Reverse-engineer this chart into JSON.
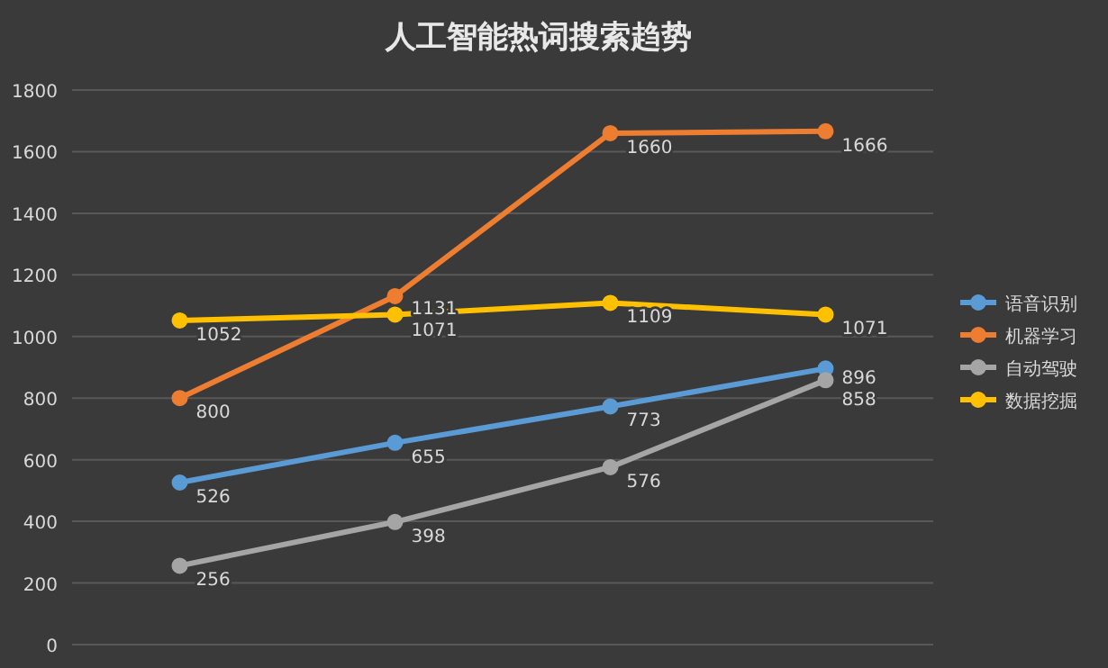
{
  "chart_data": {
    "type": "line",
    "title": "人工智能热词搜索趋势",
    "categories": [
      null,
      null,
      null,
      null
    ],
    "series": [
      {
        "name": "语音识别",
        "color": "#5b9bd5",
        "values": [
          526,
          655,
          773,
          896
        ]
      },
      {
        "name": "机器学习",
        "color": "#ed7d31",
        "values": [
          800,
          1131,
          1660,
          1666
        ]
      },
      {
        "name": "自动驾驶",
        "color": "#a5a5a5",
        "values": [
          256,
          398,
          576,
          858
        ]
      },
      {
        "name": "数据挖掘",
        "color": "#ffc000",
        "values": [
          1052,
          1071,
          1109,
          1071
        ]
      }
    ],
    "ylim": [
      0,
      1800
    ],
    "yticks": [
      0,
      200,
      400,
      600,
      800,
      1000,
      1200,
      1400,
      1600,
      1800
    ],
    "grid": "y",
    "legend": "right",
    "marker": "circle",
    "data_labels": true
  }
}
